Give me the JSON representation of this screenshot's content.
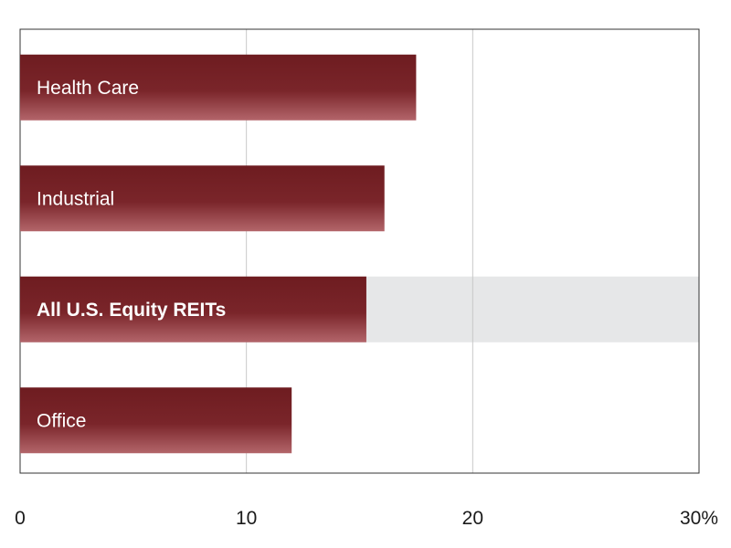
{
  "chart_data": {
    "type": "bar",
    "orientation": "horizontal",
    "categories": [
      "Health Care",
      "Industrial",
      "All U.S. Equity REITs",
      "Office"
    ],
    "values": [
      17.5,
      16.1,
      15.3,
      12.0
    ],
    "highlighted_category": "All U.S. Equity REITs",
    "x_ticks": [
      "0",
      "10",
      "20",
      "30%"
    ],
    "xlim": [
      0,
      30
    ],
    "grid": true,
    "colors": {
      "bar_dark": "#6e1c20",
      "bar_light": "#b3656a",
      "highlight_band": "#e6e7e8",
      "grid": "#c8c8c8",
      "axis": "#333333"
    }
  }
}
